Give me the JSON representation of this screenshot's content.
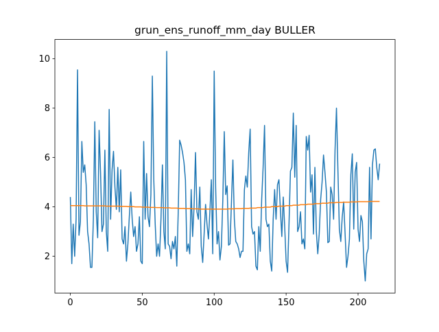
{
  "chart_data": {
    "type": "line",
    "title": "grun_ens_runoff_mm_day BULLER",
    "xlim": [
      -10.75,
      225.75
    ],
    "xticks": [
      0,
      50,
      100,
      150,
      200
    ],
    "ylim": [
      0.51,
      10.78
    ],
    "yticks": [
      2,
      4,
      6,
      8,
      10
    ],
    "series": [
      {
        "color": "#1f77b4",
        "values": [
          4.4,
          1.7,
          3.3,
          2.0,
          3.5,
          9.55,
          2.85,
          3.4,
          6.65,
          5.4,
          5.7,
          4.9,
          3.0,
          2.5,
          1.55,
          1.55,
          3.5,
          7.45,
          3.8,
          2.75,
          7.1,
          5.4,
          3.0,
          3.3,
          6.3,
          3.0,
          2.2,
          7.95,
          3.5,
          5.5,
          6.25,
          4.8,
          3.9,
          5.6,
          3.8,
          5.5,
          2.7,
          2.5,
          3.2,
          1.8,
          2.5,
          3.6,
          4.6,
          3.5,
          2.8,
          3.2,
          2.2,
          2.5,
          3.6,
          1.8,
          1.7,
          6.65,
          3.5,
          5.35,
          3.6,
          3.2,
          4.5,
          9.3,
          5.1,
          3.3,
          2.0,
          2.5,
          2.0,
          3.5,
          5.7,
          3.0,
          2.3,
          10.3,
          2.5,
          2.4,
          1.9,
          2.6,
          2.3,
          2.8,
          1.6,
          3.8,
          6.7,
          6.5,
          6.2,
          5.8,
          5.1,
          2.2,
          2.5,
          2.1,
          4.7,
          2.8,
          4.0,
          6.2,
          3.8,
          3.5,
          4.8,
          2.4,
          1.75,
          2.9,
          4.1,
          3.3,
          2.7,
          3.8,
          5.1,
          2.1,
          9.5,
          4.8,
          2.5,
          3.0,
          1.85,
          2.4,
          4.3,
          7.05,
          4.5,
          4.85,
          2.45,
          2.5,
          4.2,
          5.9,
          3.5,
          2.6,
          2.5,
          2.3,
          1.95,
          2.2,
          2.2,
          4.7,
          5.25,
          4.8,
          6.2,
          7.15,
          3.2,
          2.9,
          3.0,
          1.6,
          1.45,
          3.2,
          2.2,
          4.3,
          5.6,
          7.3,
          3.5,
          3.2,
          3.3,
          1.8,
          1.4,
          3.5,
          4.7,
          3.5,
          4.9,
          5.1,
          3.9,
          2.8,
          4.4,
          3.2,
          1.8,
          1.35,
          3.3,
          5.45,
          5.6,
          7.8,
          5.2,
          7.3,
          3.0,
          3.2,
          3.8,
          2.5,
          2.7,
          2.3,
          6.85,
          6.3,
          6.9,
          4.6,
          5.3,
          2.9,
          5.6,
          3.0,
          2.1,
          2.9,
          4.3,
          5.0,
          6.1,
          5.4,
          4.6,
          2.55,
          2.6,
          4.8,
          4.5,
          3.5,
          6.3,
          8.0,
          5.5,
          3.1,
          2.6,
          3.6,
          4.2,
          2.9,
          1.55,
          2.0,
          2.7,
          5.3,
          6.15,
          3.1,
          5.4,
          5.8,
          3.1,
          2.6,
          3.65,
          3.4,
          1.8,
          1.0,
          2.1,
          2.3,
          5.6,
          2.7,
          5.7,
          6.3,
          6.35,
          5.6,
          5.1,
          5.75
        ]
      },
      {
        "color": "#ff7f0e",
        "values": [
          4.05,
          4.05,
          4.05,
          4.05,
          4.05,
          4.05,
          4.05,
          4.05,
          4.05,
          4.05,
          4.04,
          4.04,
          4.04,
          4.04,
          4.04,
          4.04,
          4.04,
          4.04,
          4.04,
          4.04,
          4.04,
          4.04,
          4.04,
          4.04,
          4.04,
          4.03,
          4.03,
          4.03,
          4.03,
          4.03,
          4.03,
          4.03,
          4.03,
          4.03,
          4.03,
          4.02,
          4.02,
          4.02,
          4.02,
          4.02,
          4.01,
          4.01,
          4.01,
          4.01,
          4.01,
          4.0,
          4.0,
          4.0,
          4.0,
          4.0,
          3.99,
          3.99,
          3.99,
          3.99,
          3.99,
          3.98,
          3.98,
          3.98,
          3.98,
          3.98,
          3.97,
          3.97,
          3.97,
          3.97,
          3.97,
          3.96,
          3.96,
          3.96,
          3.96,
          3.96,
          3.95,
          3.95,
          3.95,
          3.95,
          3.95,
          3.94,
          3.94,
          3.94,
          3.94,
          3.94,
          3.93,
          3.93,
          3.93,
          3.93,
          3.93,
          3.92,
          3.92,
          3.92,
          3.92,
          3.92,
          3.91,
          3.91,
          3.91,
          3.91,
          3.91,
          3.91,
          3.91,
          3.91,
          3.91,
          3.91,
          3.91,
          3.91,
          3.91,
          3.91,
          3.91,
          3.91,
          3.91,
          3.91,
          3.91,
          3.91,
          3.92,
          3.92,
          3.92,
          3.92,
          3.92,
          3.93,
          3.93,
          3.93,
          3.93,
          3.93,
          3.94,
          3.94,
          3.94,
          3.94,
          3.94,
          3.95,
          3.95,
          3.95,
          3.95,
          3.95,
          3.97,
          3.97,
          3.97,
          3.97,
          3.97,
          3.99,
          3.99,
          3.99,
          3.99,
          3.99,
          4.01,
          4.01,
          4.01,
          4.01,
          4.01,
          4.03,
          4.03,
          4.03,
          4.03,
          4.03,
          4.05,
          4.05,
          4.05,
          4.05,
          4.05,
          4.07,
          4.07,
          4.07,
          4.07,
          4.07,
          4.09,
          4.09,
          4.09,
          4.09,
          4.09,
          4.11,
          4.11,
          4.11,
          4.11,
          4.11,
          4.13,
          4.13,
          4.13,
          4.13,
          4.13,
          4.15,
          4.15,
          4.15,
          4.15,
          4.15,
          4.17,
          4.17,
          4.17,
          4.17,
          4.17,
          4.18,
          4.18,
          4.18,
          4.18,
          4.18,
          4.19,
          4.19,
          4.19,
          4.19,
          4.19,
          4.2,
          4.2,
          4.2,
          4.2,
          4.2,
          4.21,
          4.21,
          4.21,
          4.21,
          4.21,
          4.21,
          4.21,
          4.21,
          4.22,
          4.22,
          4.22,
          4.22,
          4.22,
          4.22,
          4.22,
          4.22
        ]
      }
    ]
  }
}
